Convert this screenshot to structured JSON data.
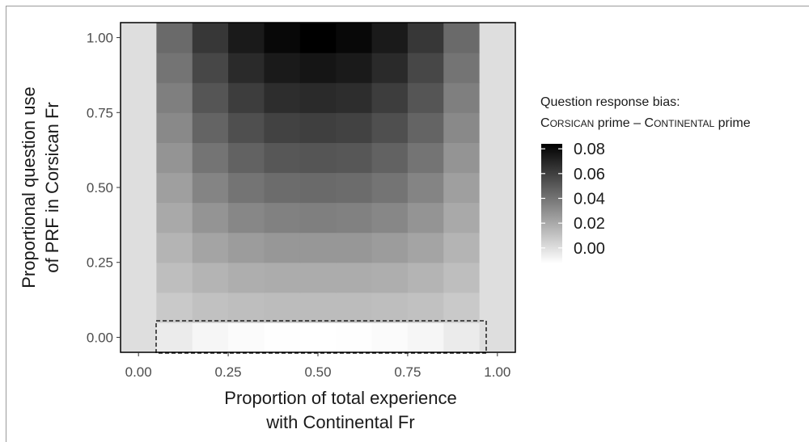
{
  "chart_data": {
    "type": "heatmap",
    "x": [
      0.0,
      0.1,
      0.2,
      0.3,
      0.4,
      0.5,
      0.6,
      0.7,
      0.8,
      0.9,
      1.0
    ],
    "y": [
      0.0,
      0.1,
      0.2,
      0.3,
      0.4,
      0.5,
      0.6,
      0.7,
      0.8,
      0.9,
      1.0
    ],
    "values": [
      [
        0.0,
        -0.005,
        -0.009,
        -0.011,
        -0.012,
        -0.0125,
        -0.012,
        -0.011,
        -0.009,
        -0.005,
        0.0
      ],
      [
        0.0,
        0.008,
        0.011,
        0.012,
        0.013,
        0.013,
        0.013,
        0.012,
        0.011,
        0.008,
        0.0
      ],
      [
        0.0,
        0.012,
        0.016,
        0.018,
        0.019,
        0.019,
        0.019,
        0.018,
        0.016,
        0.012,
        0.0
      ],
      [
        0.0,
        0.016,
        0.022,
        0.025,
        0.027,
        0.027,
        0.027,
        0.025,
        0.022,
        0.016,
        0.0
      ],
      [
        0.0,
        0.02,
        0.028,
        0.033,
        0.035,
        0.036,
        0.035,
        0.033,
        0.028,
        0.02,
        0.0
      ],
      [
        0.0,
        0.024,
        0.034,
        0.04,
        0.043,
        0.044,
        0.043,
        0.04,
        0.034,
        0.024,
        0.0
      ],
      [
        0.0,
        0.028,
        0.04,
        0.047,
        0.051,
        0.052,
        0.051,
        0.047,
        0.04,
        0.028,
        0.0
      ],
      [
        0.0,
        0.032,
        0.046,
        0.054,
        0.059,
        0.06,
        0.059,
        0.054,
        0.046,
        0.032,
        0.0
      ],
      [
        0.0,
        0.036,
        0.052,
        0.061,
        0.067,
        0.068,
        0.067,
        0.061,
        0.052,
        0.036,
        0.0
      ],
      [
        0.0,
        0.04,
        0.057,
        0.068,
        0.074,
        0.076,
        0.074,
        0.068,
        0.057,
        0.04,
        0.0
      ],
      [
        0.0,
        0.044,
        0.063,
        0.074,
        0.081,
        0.084,
        0.081,
        0.074,
        0.063,
        0.044,
        0.0
      ]
    ],
    "value_range": [
      -0.0125,
      0.084
    ],
    "xlim": [
      -0.05,
      1.05
    ],
    "ylim": [
      -0.05,
      1.05
    ],
    "x_ticks": [
      "0.00",
      "0.25",
      "0.50",
      "0.75",
      "1.00"
    ],
    "y_ticks": [
      "0.00",
      "0.25",
      "0.50",
      "0.75",
      "1.00"
    ],
    "xlabel_line1": "Proportion of total experience",
    "xlabel_line2": "with Continental Fr",
    "ylabel_line1": "Proportional question use",
    "ylabel_line2": "of PRF in Corsican Fr",
    "legend": {
      "title_line1": "Question response bias:",
      "title_line2": {
        "corsican_cap": "C",
        "corsican_rest": "ORSICAN",
        "middle": " prime – ",
        "continental_cap": "C",
        "continental_rest": "ONTINENTAL",
        "end": " prime"
      },
      "labels": [
        "0.08",
        "0.06",
        "0.04",
        "0.02",
        "0.00"
      ],
      "placement": "right"
    },
    "annotation": "dashed rectangle around y = 0 row for x from 0.1 to 0.9",
    "grid": false,
    "colors": {
      "high": "#000000",
      "low": "#ffffff",
      "panel_border": "#000000"
    }
  }
}
